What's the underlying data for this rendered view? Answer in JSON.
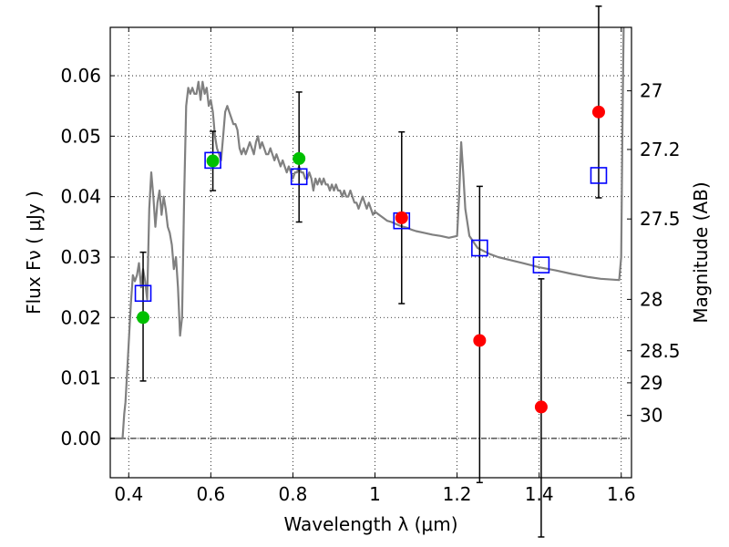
{
  "chart_data": {
    "type": "scatter",
    "title": "",
    "xlabel": "Wavelength  λ (μm)",
    "ylabel": "Flux  Fν  ( μJy )",
    "ylabel_right": "Magnitude (AB)",
    "xlim": [
      0.355,
      1.625
    ],
    "ylim": [
      -0.0065,
      0.068
    ],
    "x_ticks": [
      0.4,
      0.6,
      0.8,
      1.0,
      1.2,
      1.4,
      1.6
    ],
    "x_tick_labels": [
      "0.4",
      "0.6",
      "0.8",
      "1",
      "1.2",
      "1.4",
      "1.6"
    ],
    "y_ticks": [
      0.0,
      0.01,
      0.02,
      0.03,
      0.04,
      0.05,
      0.06
    ],
    "y_tick_labels": [
      "0.00",
      "0.01",
      "0.02",
      "0.03",
      "0.04",
      "0.05",
      "0.06"
    ],
    "right_ticks": [
      {
        "flux": 0.0575,
        "label": "27"
      },
      {
        "flux": 0.0478,
        "label": "27.2"
      },
      {
        "flux": 0.0363,
        "label": "27.5"
      },
      {
        "flux": 0.023,
        "label": "28"
      },
      {
        "flux": 0.0145,
        "label": "28.5"
      },
      {
        "flux": 0.0092,
        "label": "29"
      },
      {
        "flux": 0.0038,
        "label": "30"
      }
    ],
    "grid": true,
    "grid_style": "dotted",
    "zero_line": true,
    "series": [
      {
        "role": "model_sed",
        "style": "line",
        "color": "#808080",
        "x": [
          0.355,
          0.385,
          0.389,
          0.392,
          0.397,
          0.405,
          0.41,
          0.415,
          0.42,
          0.425,
          0.43,
          0.435,
          0.44,
          0.445,
          0.45,
          0.455,
          0.46,
          0.465,
          0.47,
          0.475,
          0.48,
          0.485,
          0.49,
          0.495,
          0.5,
          0.505,
          0.51,
          0.515,
          0.52,
          0.525,
          0.53,
          0.535,
          0.54,
          0.545,
          0.55,
          0.555,
          0.56,
          0.565,
          0.57,
          0.575,
          0.58,
          0.585,
          0.59,
          0.595,
          0.6,
          0.605,
          0.61,
          0.615,
          0.62,
          0.625,
          0.63,
          0.635,
          0.64,
          0.645,
          0.65,
          0.655,
          0.66,
          0.665,
          0.67,
          0.675,
          0.68,
          0.685,
          0.69,
          0.695,
          0.7,
          0.705,
          0.71,
          0.715,
          0.72,
          0.725,
          0.73,
          0.735,
          0.74,
          0.745,
          0.75,
          0.755,
          0.76,
          0.765,
          0.77,
          0.775,
          0.78,
          0.785,
          0.79,
          0.795,
          0.8,
          0.805,
          0.81,
          0.815,
          0.82,
          0.825,
          0.83,
          0.835,
          0.84,
          0.845,
          0.85,
          0.855,
          0.86,
          0.865,
          0.87,
          0.875,
          0.88,
          0.885,
          0.89,
          0.895,
          0.9,
          0.905,
          0.91,
          0.915,
          0.92,
          0.925,
          0.93,
          0.935,
          0.94,
          0.945,
          0.95,
          0.955,
          0.96,
          0.965,
          0.97,
          0.975,
          0.98,
          0.985,
          0.99,
          0.995,
          1.0,
          1.01,
          1.02,
          1.03,
          1.04,
          1.05,
          1.06,
          1.07,
          1.08,
          1.09,
          1.1,
          1.12,
          1.14,
          1.16,
          1.18,
          1.2,
          1.205,
          1.21,
          1.215,
          1.22,
          1.23,
          1.25,
          1.28,
          1.3,
          1.33,
          1.36,
          1.4,
          1.44,
          1.48,
          1.52,
          1.55,
          1.595,
          1.6,
          1.603,
          1.606
        ],
        "y": [
          0.0,
          0.0,
          0.004,
          0.006,
          0.012,
          0.022,
          0.027,
          0.026,
          0.027,
          0.029,
          0.025,
          0.028,
          0.026,
          0.023,
          0.038,
          0.044,
          0.04,
          0.035,
          0.039,
          0.041,
          0.037,
          0.04,
          0.038,
          0.035,
          0.034,
          0.032,
          0.028,
          0.03,
          0.025,
          0.017,
          0.02,
          0.04,
          0.055,
          0.058,
          0.057,
          0.058,
          0.057,
          0.057,
          0.059,
          0.056,
          0.059,
          0.057,
          0.058,
          0.055,
          0.056,
          0.054,
          0.05,
          0.048,
          0.047,
          0.046,
          0.05,
          0.054,
          0.055,
          0.054,
          0.053,
          0.052,
          0.052,
          0.051,
          0.048,
          0.047,
          0.048,
          0.047,
          0.048,
          0.049,
          0.048,
          0.047,
          0.049,
          0.05,
          0.048,
          0.049,
          0.048,
          0.047,
          0.047,
          0.048,
          0.047,
          0.046,
          0.047,
          0.046,
          0.045,
          0.046,
          0.045,
          0.044,
          0.045,
          0.044,
          0.043,
          0.044,
          0.044,
          0.045,
          0.044,
          0.044,
          0.043,
          0.043,
          0.044,
          0.043,
          0.041,
          0.043,
          0.042,
          0.043,
          0.042,
          0.043,
          0.042,
          0.042,
          0.041,
          0.042,
          0.041,
          0.042,
          0.041,
          0.041,
          0.04,
          0.041,
          0.04,
          0.04,
          0.041,
          0.04,
          0.039,
          0.039,
          0.038,
          0.039,
          0.04,
          0.039,
          0.038,
          0.039,
          0.038,
          0.037,
          0.0375,
          0.037,
          0.0365,
          0.036,
          0.0358,
          0.0355,
          0.0352,
          0.035,
          0.0348,
          0.0345,
          0.0343,
          0.034,
          0.0337,
          0.0335,
          0.0332,
          0.0335,
          0.04,
          0.049,
          0.044,
          0.038,
          0.0335,
          0.0315,
          0.0305,
          0.03,
          0.0295,
          0.029,
          0.0283,
          0.0278,
          0.0272,
          0.0267,
          0.0264,
          0.0262,
          0.03,
          0.052,
          0.068
        ]
      },
      {
        "role": "model_band_flux",
        "style": "open_square",
        "color": "#0000ff",
        "x": [
          0.435,
          0.605,
          0.815,
          1.065,
          1.255,
          1.405,
          1.545
        ],
        "y": [
          0.024,
          0.046,
          0.0433,
          0.036,
          0.0315,
          0.0287,
          0.0435
        ]
      },
      {
        "role": "detections",
        "style": "filled_circle",
        "color": "#00c000",
        "x": [
          0.435,
          0.605,
          0.815
        ],
        "y": [
          0.02,
          0.0459,
          0.0463
        ],
        "err_low": [
          0.0105,
          0.0049,
          0.0105
        ],
        "err_high": [
          0.0108,
          0.0049,
          0.011
        ]
      },
      {
        "role": "measurements",
        "style": "filled_circle",
        "color": "#ff0000",
        "x": [
          1.065,
          1.255,
          1.405,
          1.545
        ],
        "y": [
          0.0365,
          0.0162,
          0.0052,
          0.054
        ],
        "err_low": [
          0.0142,
          0.0235,
          0.0215,
          0.0142
        ],
        "err_high": [
          0.0142,
          0.0255,
          0.0212,
          0.0175
        ]
      }
    ]
  },
  "colors": {
    "sed_line": "#808080",
    "model_squares": "#0000ff",
    "green_points": "#00c000",
    "red_points": "#ff0000",
    "error_bars": "#000000"
  }
}
